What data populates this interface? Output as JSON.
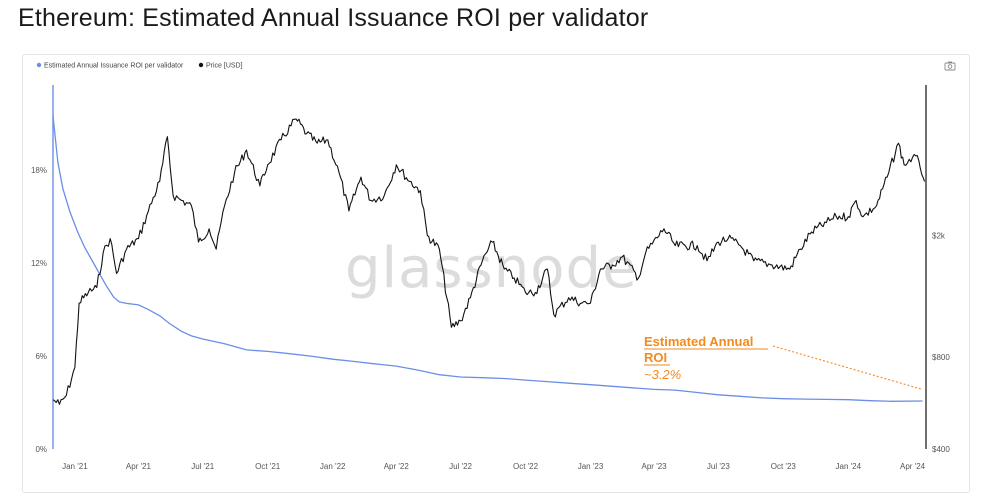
{
  "page": {
    "title": "Ethereum: Estimated Annual Issuance ROI per validator"
  },
  "watermark": "glassnode",
  "colors": {
    "roi": "#6c8ee6",
    "price": "#111111",
    "annotation": "#f28a1c",
    "grid": "#efefef"
  },
  "icons": {
    "camera": "camera-icon"
  },
  "chart_data": {
    "type": "line",
    "title": "Ethereum: Estimated Annual Issuance ROI per validator",
    "x_ticks": [
      "Jan '21",
      "Apr '21",
      "Jul '21",
      "Oct '21",
      "Jan '22",
      "Apr '22",
      "Jul '22",
      "Oct '22",
      "Jan '23",
      "Apr '23",
      "Jul '23",
      "Oct '23",
      "Jan '24",
      "Apr '24"
    ],
    "x_range": [
      "2020-12-01",
      "2024-04-20"
    ],
    "y_left": {
      "ticks": [
        "0%",
        "6%",
        "12%",
        "18%"
      ],
      "tick_values": [
        0,
        6,
        12,
        18
      ],
      "range": [
        0,
        23.5
      ],
      "scale": "linear"
    },
    "y_right": {
      "ticks": [
        "$400",
        "$800",
        "$2k"
      ],
      "tick_values": [
        400,
        800,
        2000
      ],
      "range": [
        400,
        6200
      ],
      "scale": "log"
    },
    "legend": {
      "position": "top-left",
      "entries": [
        "Estimated Annual Issuance ROI per validator",
        "Price [USD]"
      ]
    },
    "grid": false,
    "annotation": {
      "line1": "Estimated Annual",
      "line2": "ROI",
      "line3": "~3.2%"
    },
    "series": [
      {
        "name": "Estimated Annual Issuance ROI per validator",
        "axis": "left",
        "points": [
          [
            "2020-12-01",
            21.5
          ],
          [
            "2020-12-08",
            18.5
          ],
          [
            "2020-12-15",
            16.8
          ],
          [
            "2020-12-25",
            15.3
          ],
          [
            "2021-01-05",
            14.0
          ],
          [
            "2021-01-15",
            13.0
          ],
          [
            "2021-01-25",
            12.2
          ],
          [
            "2021-02-05",
            11.3
          ],
          [
            "2021-02-15",
            10.5
          ],
          [
            "2021-02-25",
            9.8
          ],
          [
            "2021-03-05",
            9.5
          ],
          [
            "2021-03-15",
            9.4
          ],
          [
            "2021-04-01",
            9.3
          ],
          [
            "2021-04-15",
            9.0
          ],
          [
            "2021-05-01",
            8.6
          ],
          [
            "2021-05-15",
            8.1
          ],
          [
            "2021-06-01",
            7.6
          ],
          [
            "2021-06-15",
            7.3
          ],
          [
            "2021-07-01",
            7.1
          ],
          [
            "2021-08-01",
            6.8
          ],
          [
            "2021-09-01",
            6.4
          ],
          [
            "2021-10-01",
            6.3
          ],
          [
            "2021-11-01",
            6.15
          ],
          [
            "2021-12-01",
            6.0
          ],
          [
            "2022-01-01",
            5.8
          ],
          [
            "2022-02-01",
            5.65
          ],
          [
            "2022-03-01",
            5.5
          ],
          [
            "2022-04-01",
            5.35
          ],
          [
            "2022-05-01",
            5.1
          ],
          [
            "2022-06-01",
            4.8
          ],
          [
            "2022-07-01",
            4.65
          ],
          [
            "2022-08-01",
            4.6
          ],
          [
            "2022-09-01",
            4.55
          ],
          [
            "2022-10-01",
            4.45
          ],
          [
            "2022-11-01",
            4.35
          ],
          [
            "2022-12-01",
            4.25
          ],
          [
            "2023-01-01",
            4.15
          ],
          [
            "2023-02-01",
            4.05
          ],
          [
            "2023-03-01",
            3.95
          ],
          [
            "2023-04-01",
            3.85
          ],
          [
            "2023-05-01",
            3.8
          ],
          [
            "2023-06-01",
            3.65
          ],
          [
            "2023-07-01",
            3.5
          ],
          [
            "2023-08-01",
            3.4
          ],
          [
            "2023-09-01",
            3.3
          ],
          [
            "2023-10-01",
            3.25
          ],
          [
            "2023-11-01",
            3.22
          ],
          [
            "2023-12-01",
            3.2
          ],
          [
            "2024-01-01",
            3.18
          ],
          [
            "2024-02-01",
            3.12
          ],
          [
            "2024-03-01",
            3.08
          ],
          [
            "2024-04-15",
            3.1
          ]
        ]
      },
      {
        "name": "Price [USD]",
        "axis": "right",
        "points": [
          [
            "2020-12-01",
            580
          ],
          [
            "2020-12-10",
            560
          ],
          [
            "2020-12-20",
            600
          ],
          [
            "2021-01-01",
            740
          ],
          [
            "2021-01-07",
            1200
          ],
          [
            "2021-01-20",
            1300
          ],
          [
            "2021-02-01",
            1350
          ],
          [
            "2021-02-10",
            1750
          ],
          [
            "2021-02-20",
            1950
          ],
          [
            "2021-03-01",
            1500
          ],
          [
            "2021-03-15",
            1800
          ],
          [
            "2021-04-01",
            1950
          ],
          [
            "2021-04-15",
            2400
          ],
          [
            "2021-05-01",
            3000
          ],
          [
            "2021-05-12",
            4200
          ],
          [
            "2021-05-20",
            2700
          ],
          [
            "2021-06-01",
            2600
          ],
          [
            "2021-06-15",
            2500
          ],
          [
            "2021-06-25",
            1900
          ],
          [
            "2021-07-10",
            2100
          ],
          [
            "2021-07-20",
            1800
          ],
          [
            "2021-08-01",
            2500
          ],
          [
            "2021-08-15",
            3200
          ],
          [
            "2021-09-01",
            3800
          ],
          [
            "2021-09-20",
            2900
          ],
          [
            "2021-10-01",
            3400
          ],
          [
            "2021-10-20",
            4100
          ],
          [
            "2021-11-10",
            4800
          ],
          [
            "2021-11-25",
            4300
          ],
          [
            "2021-12-10",
            4000
          ],
          [
            "2021-12-25",
            4100
          ],
          [
            "2022-01-10",
            3200
          ],
          [
            "2022-01-24",
            2400
          ],
          [
            "2022-02-10",
            3100
          ],
          [
            "2022-02-24",
            2600
          ],
          [
            "2022-03-15",
            2700
          ],
          [
            "2022-04-01",
            3400
          ],
          [
            "2022-04-20",
            3000
          ],
          [
            "2022-05-05",
            2800
          ],
          [
            "2022-05-15",
            2000
          ],
          [
            "2022-06-01",
            1800
          ],
          [
            "2022-06-18",
            1000
          ],
          [
            "2022-07-01",
            1050
          ],
          [
            "2022-07-15",
            1250
          ],
          [
            "2022-08-01",
            1650
          ],
          [
            "2022-08-15",
            1900
          ],
          [
            "2022-09-01",
            1550
          ],
          [
            "2022-09-15",
            1450
          ],
          [
            "2022-10-01",
            1300
          ],
          [
            "2022-10-15",
            1300
          ],
          [
            "2022-11-01",
            1550
          ],
          [
            "2022-11-10",
            1100
          ],
          [
            "2022-12-01",
            1250
          ],
          [
            "2022-12-20",
            1200
          ],
          [
            "2023-01-01",
            1200
          ],
          [
            "2023-01-15",
            1550
          ],
          [
            "2023-02-01",
            1600
          ],
          [
            "2023-02-15",
            1700
          ],
          [
            "2023-03-10",
            1450
          ],
          [
            "2023-03-20",
            1750
          ],
          [
            "2023-04-15",
            2100
          ],
          [
            "2023-05-01",
            1850
          ],
          [
            "2023-06-01",
            1850
          ],
          [
            "2023-06-15",
            1650
          ],
          [
            "2023-07-01",
            1900
          ],
          [
            "2023-07-15",
            1950
          ],
          [
            "2023-08-01",
            1850
          ],
          [
            "2023-08-20",
            1650
          ],
          [
            "2023-09-15",
            1600
          ],
          [
            "2023-10-10",
            1550
          ],
          [
            "2023-10-25",
            1800
          ],
          [
            "2023-11-10",
            2050
          ],
          [
            "2023-12-01",
            2200
          ],
          [
            "2023-12-15",
            2300
          ],
          [
            "2024-01-01",
            2300
          ],
          [
            "2024-01-12",
            2600
          ],
          [
            "2024-01-22",
            2300
          ],
          [
            "2024-02-10",
            2500
          ],
          [
            "2024-02-25",
            3100
          ],
          [
            "2024-03-12",
            4000
          ],
          [
            "2024-03-20",
            3400
          ],
          [
            "2024-04-01",
            3600
          ],
          [
            "2024-04-10",
            3500
          ],
          [
            "2024-04-18",
            3000
          ]
        ]
      }
    ]
  }
}
